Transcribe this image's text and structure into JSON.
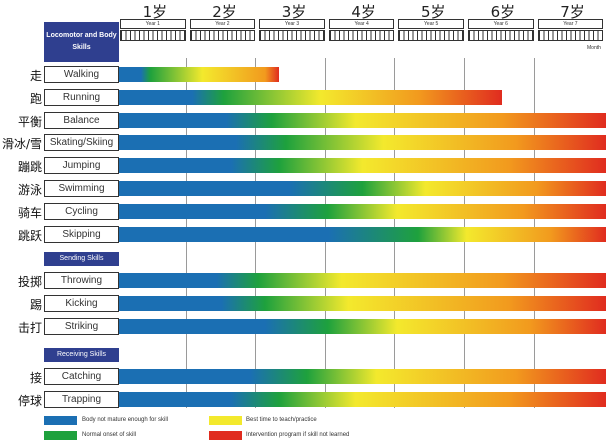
{
  "colors": {
    "blue": "#1b6fb3",
    "green": "#1ea13d",
    "yellow": "#f3e92d",
    "orange": "#f29a1e",
    "red": "#e02c1f",
    "header": "#2f3f8f"
  },
  "age_labels": [
    "1岁",
    "2岁",
    "3岁",
    "4岁",
    "5岁",
    "6岁",
    "7岁"
  ],
  "year_labels": [
    "Year 1",
    "Year 2",
    "Year 3",
    "Year 4",
    "Year 5",
    "Year 6",
    "Year 7"
  ],
  "month_label": "Month",
  "sections": [
    {
      "title": "Locomotor and Body Skills",
      "skills": [
        {
          "cn": "走",
          "en": "Walking",
          "end_year": 2.3,
          "stops": {
            "green": 0.45,
            "yellow": 1.2,
            "orange": 2.1
          }
        },
        {
          "cn": "跑",
          "en": "Running",
          "end_year": 5.5,
          "stops": {
            "green": 1.5,
            "yellow": 2.9,
            "orange": 4.3
          }
        },
        {
          "cn": "平衡",
          "en": "Balance",
          "end_year": 7.0,
          "stops": {
            "green": 2.2,
            "yellow": 3.4,
            "orange": 5.5
          }
        },
        {
          "cn": "滑冰/雪",
          "en": "Skating/Skiing",
          "end_year": 7.0,
          "stops": {
            "green": 2.4,
            "yellow": 3.8,
            "orange": 5.7
          }
        },
        {
          "cn": "蹦跳",
          "en": "Jumping",
          "end_year": 7.0,
          "stops": {
            "green": 2.3,
            "yellow": 3.5,
            "orange": 5.6
          }
        },
        {
          "cn": "游泳",
          "en": "Swimming",
          "end_year": 7.0,
          "stops": {
            "green": 3.5,
            "yellow": 4.4,
            "orange": 6.0
          }
        },
        {
          "cn": "骑车",
          "en": "Cycling",
          "end_year": 7.0,
          "stops": {
            "green": 3.0,
            "yellow": 4.0,
            "orange": 5.8
          }
        },
        {
          "cn": "跳跃",
          "en": "Skipping",
          "end_year": 7.0,
          "stops": {
            "green": 4.3,
            "yellow": 5.0,
            "orange": 6.2
          }
        }
      ]
    },
    {
      "title": "Sending Skills",
      "skills": [
        {
          "cn": "投掷",
          "en": "Throwing",
          "end_year": 7.0,
          "stops": {
            "green": 2.0,
            "yellow": 3.2,
            "orange": 5.5
          }
        },
        {
          "cn": "踢",
          "en": "Kicking",
          "end_year": 7.0,
          "stops": {
            "green": 2.1,
            "yellow": 3.3,
            "orange": 5.6
          }
        },
        {
          "cn": "击打",
          "en": "Striking",
          "end_year": 7.0,
          "stops": {
            "green": 3.0,
            "yellow": 4.0,
            "orange": 5.9
          }
        }
      ]
    },
    {
      "title": "Receiving Skills",
      "skills": [
        {
          "cn": "接",
          "en": "Catching",
          "end_year": 7.0,
          "stops": {
            "green": 2.7,
            "yellow": 3.7,
            "orange": 5.7
          }
        },
        {
          "cn": "停球",
          "en": "Trapping",
          "end_year": 7.0,
          "stops": {
            "green": 2.3,
            "yellow": 3.4,
            "orange": 5.6
          }
        }
      ]
    }
  ],
  "legend": [
    {
      "color": "blue",
      "text": "Body not mature enough for skill"
    },
    {
      "color": "green",
      "text": "Normal onset of skill"
    },
    {
      "color": "yellow",
      "text": "Best time to teach/practice"
    },
    {
      "color": "red",
      "text": "Intervention program if skill not learned"
    }
  ]
}
